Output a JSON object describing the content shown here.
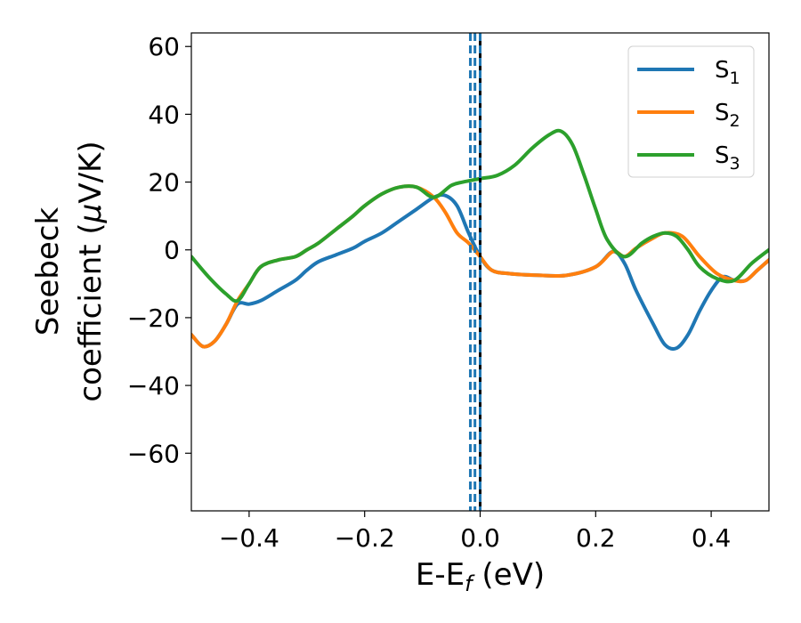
{
  "chart_data": {
    "type": "line",
    "title": "",
    "xlabel": "E-E_f (eV)",
    "xlabel_parts": [
      "E-E",
      "f",
      " (eV)"
    ],
    "ylabel_line1": "Seebeck",
    "ylabel_line2_parts": [
      "coefficient  (",
      "μ",
      "V/K)"
    ],
    "xlim": [
      -0.5,
      0.5
    ],
    "ylim": [
      -77,
      64
    ],
    "x_ticks": [
      -0.4,
      -0.2,
      0.0,
      0.2,
      0.4
    ],
    "x_tick_labels": [
      "−0.4",
      "−0.2",
      "0.0",
      "0.2",
      "0.4"
    ],
    "y_ticks": [
      -60,
      -40,
      -20,
      0,
      20,
      40,
      60
    ],
    "y_tick_labels": [
      "−60",
      "−40",
      "−20",
      "0",
      "20",
      "40",
      "60"
    ],
    "grid": false,
    "legend_position": "top-right",
    "vlines": [
      {
        "x": -0.017,
        "color": "#1f77b4",
        "style": "dashed"
      },
      {
        "x": -0.009,
        "color": "#1f77b4",
        "style": "dashed"
      },
      {
        "x": 0.0,
        "color": "#000000",
        "style": "solid"
      },
      {
        "x": 0.0,
        "color": "#1f77b4",
        "style": "dashed"
      }
    ],
    "series": [
      {
        "name_base": "S",
        "name_sub": "1",
        "color": "#1f77b4",
        "x": [
          -0.5,
          -0.48,
          -0.46,
          -0.44,
          -0.42,
          -0.4,
          -0.38,
          -0.35,
          -0.32,
          -0.3,
          -0.28,
          -0.25,
          -0.22,
          -0.2,
          -0.17,
          -0.14,
          -0.11,
          -0.08,
          -0.06,
          -0.04,
          -0.02,
          0.0,
          0.02,
          0.05,
          0.1,
          0.15,
          0.2,
          0.23,
          0.25,
          0.27,
          0.3,
          0.32,
          0.34,
          0.36,
          0.38,
          0.4,
          0.42,
          0.44,
          0.46,
          0.48,
          0.5
        ],
        "y": [
          -25,
          -28.5,
          -27,
          -22,
          -16,
          -16,
          -15,
          -12,
          -9,
          -6,
          -3.5,
          -1.5,
          0.5,
          2.5,
          5,
          8.5,
          12,
          15.5,
          16,
          13,
          5,
          -2,
          -6,
          -7,
          -7.5,
          -7.5,
          -5,
          -0.5,
          -4,
          -12,
          -22,
          -28,
          -29,
          -25,
          -18,
          -12,
          -8,
          -9,
          -9,
          -6,
          -3
        ]
      },
      {
        "name_base": "S",
        "name_sub": "2",
        "color": "#ff7f0e",
        "x": [
          -0.5,
          -0.48,
          -0.46,
          -0.44,
          -0.42,
          -0.4,
          -0.38,
          -0.35,
          -0.32,
          -0.3,
          -0.28,
          -0.25,
          -0.22,
          -0.2,
          -0.17,
          -0.14,
          -0.11,
          -0.08,
          -0.06,
          -0.04,
          -0.02,
          0.0,
          0.02,
          0.05,
          0.1,
          0.15,
          0.2,
          0.23,
          0.25,
          0.27,
          0.3,
          0.32,
          0.35,
          0.38,
          0.41,
          0.44,
          0.46,
          0.48,
          0.5
        ],
        "y": [
          -25,
          -28.5,
          -27,
          -22,
          -15,
          -10,
          -5,
          -3,
          -2,
          0,
          2,
          6,
          10,
          13,
          16.5,
          18.5,
          18.5,
          15.5,
          11,
          5,
          2,
          -2,
          -6,
          -7,
          -7.5,
          -7.5,
          -5,
          -0.5,
          -2,
          0.5,
          3.5,
          5,
          4,
          -2,
          -7,
          -9,
          -9,
          -6,
          -3
        ]
      },
      {
        "name_base": "S",
        "name_sub": "3",
        "color": "#2ca02c",
        "x": [
          -0.5,
          -0.47,
          -0.44,
          -0.42,
          -0.4,
          -0.38,
          -0.35,
          -0.32,
          -0.3,
          -0.28,
          -0.25,
          -0.22,
          -0.2,
          -0.17,
          -0.14,
          -0.11,
          -0.08,
          -0.05,
          -0.03,
          0.0,
          0.03,
          0.06,
          0.09,
          0.12,
          0.14,
          0.16,
          0.18,
          0.2,
          0.22,
          0.25,
          0.28,
          0.3,
          0.32,
          0.34,
          0.36,
          0.38,
          0.41,
          0.44,
          0.47,
          0.5
        ],
        "y": [
          -2,
          -8,
          -13,
          -15,
          -10,
          -5,
          -3,
          -2,
          0,
          2,
          6,
          10,
          13,
          16.5,
          18.5,
          18.5,
          15.5,
          19,
          20,
          21,
          22,
          25,
          30,
          34,
          35,
          31,
          22,
          12,
          3,
          -2,
          2,
          4,
          5,
          4,
          0,
          -5,
          -8.5,
          -9,
          -4,
          0
        ]
      }
    ]
  }
}
